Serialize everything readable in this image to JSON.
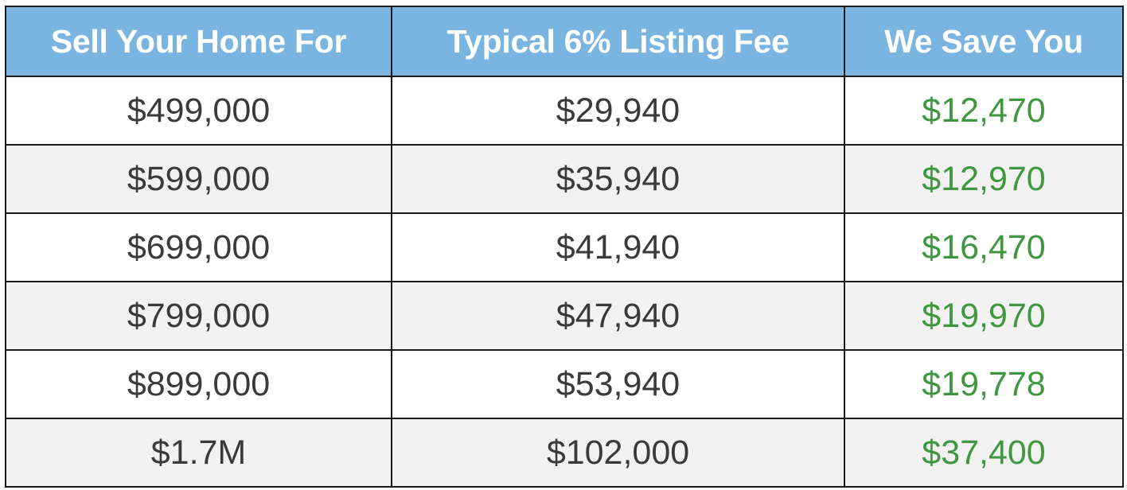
{
  "table": {
    "headers": [
      "Sell Your Home For",
      "Typical 6% Listing Fee",
      "We Save You"
    ],
    "rows": [
      [
        "$499,000",
        "$29,940",
        "$12,470"
      ],
      [
        "$599,000",
        "$35,940",
        "$12,970"
      ],
      [
        "$699,000",
        "$41,940",
        "$16,470"
      ],
      [
        "$799,000",
        "$47,940",
        "$19,970"
      ],
      [
        "$899,000",
        "$53,940",
        "$19,778"
      ],
      [
        "$1.7M",
        "$102,000",
        "$37,400"
      ]
    ]
  },
  "colors": {
    "header_background": "#7ab5e1",
    "header_text": "#ffffff",
    "body_text": "#3a3a3a",
    "savings_text": "#3f973f",
    "stripe_background": "#f2f2f2",
    "border": "#1a1a1a"
  }
}
